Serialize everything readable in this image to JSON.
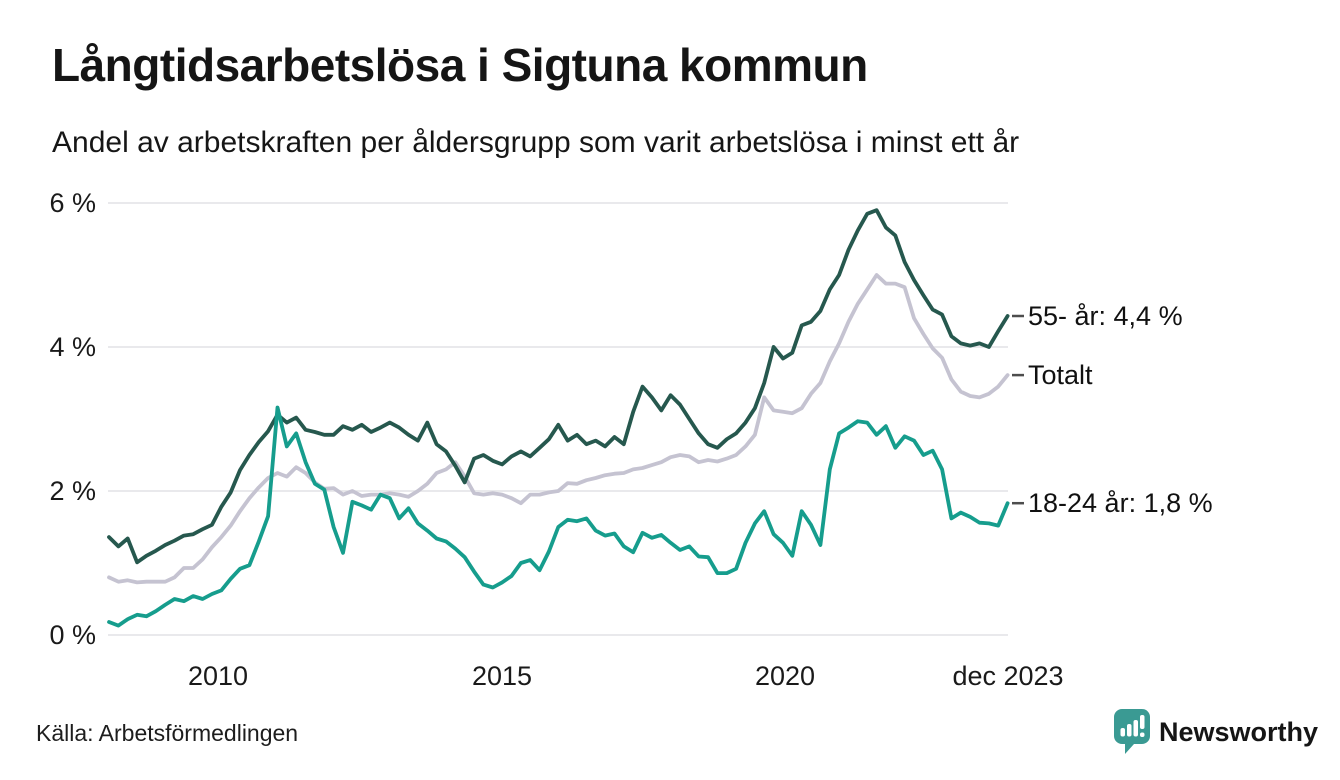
{
  "header": {
    "title": "Långtidsarbetslösa i Sigtuna kommun",
    "subtitle": "Andel av arbetskraften per åldersgrupp som varit arbetslösa i minst ett år"
  },
  "chart_data": {
    "type": "line",
    "title": "Långtidsarbetslösa i Sigtuna kommun",
    "subtitle": "Andel av arbetskraften per åldersgrupp som varit arbetslösa i minst ett år",
    "unit": "% av arbetskraften",
    "x_start": "jan 2008",
    "x_end": "dec 2023",
    "x_interval_months": 2,
    "ylim": [
      0,
      6
    ],
    "grid": true,
    "legend_position": "right-end-labels",
    "y_grid_values": [
      0,
      2,
      4,
      6
    ],
    "y_tick_labels": [
      "0 %",
      "2 %",
      "4 %",
      "6 %"
    ],
    "x_tick_labels": [
      "2010",
      "2015",
      "2020",
      "dec 2023"
    ],
    "x_tick_years": [
      2010,
      2015,
      2020,
      2023.92
    ],
    "series": [
      {
        "name": "Totalt",
        "end_label": "Totalt",
        "end_value": 3.6,
        "color": "#c5c3d1",
        "values": [
          0.8,
          0.74,
          0.76,
          0.73,
          0.74,
          0.74,
          0.74,
          0.8,
          0.93,
          0.93,
          1.05,
          1.22,
          1.36,
          1.52,
          1.72,
          1.9,
          2.05,
          2.18,
          2.25,
          2.2,
          2.33,
          2.25,
          2.12,
          2.03,
          2.04,
          1.95,
          2.0,
          1.93,
          1.95,
          1.95,
          1.97,
          1.95,
          1.92,
          2.0,
          2.1,
          2.25,
          2.3,
          2.4,
          2.2,
          1.97,
          1.95,
          1.97,
          1.95,
          1.9,
          1.83,
          1.95,
          1.95,
          1.98,
          2.0,
          2.11,
          2.1,
          2.15,
          2.18,
          2.22,
          2.24,
          2.25,
          2.3,
          2.32,
          2.36,
          2.4,
          2.47,
          2.5,
          2.48,
          2.4,
          2.43,
          2.41,
          2.45,
          2.5,
          2.62,
          2.78,
          3.3,
          3.12,
          3.1,
          3.08,
          3.15,
          3.35,
          3.5,
          3.8,
          4.05,
          4.35,
          4.6,
          4.8,
          5.0,
          4.88,
          4.88,
          4.83,
          4.4,
          4.18,
          3.98,
          3.85,
          3.55,
          3.38,
          3.32,
          3.3,
          3.35,
          3.45,
          3.61
        ]
      },
      {
        "name": "55- år",
        "end_label": "55- år: 4,4 %",
        "end_value": 4.4,
        "color": "#26584e",
        "values": [
          1.36,
          1.23,
          1.34,
          1.01,
          1.1,
          1.17,
          1.25,
          1.31,
          1.38,
          1.4,
          1.47,
          1.53,
          1.78,
          1.98,
          2.29,
          2.5,
          2.68,
          2.83,
          3.06,
          2.95,
          3.02,
          2.85,
          2.82,
          2.78,
          2.78,
          2.9,
          2.85,
          2.92,
          2.82,
          2.88,
          2.95,
          2.88,
          2.78,
          2.7,
          2.95,
          2.65,
          2.55,
          2.35,
          2.12,
          2.45,
          2.5,
          2.42,
          2.37,
          2.48,
          2.55,
          2.48,
          2.6,
          2.72,
          2.92,
          2.7,
          2.78,
          2.65,
          2.7,
          2.62,
          2.75,
          2.65,
          3.1,
          3.45,
          3.3,
          3.12,
          3.33,
          3.2,
          3.0,
          2.8,
          2.65,
          2.6,
          2.72,
          2.8,
          2.95,
          3.15,
          3.5,
          4.0,
          3.84,
          3.92,
          4.3,
          4.35,
          4.5,
          4.8,
          5.0,
          5.35,
          5.62,
          5.85,
          5.9,
          5.66,
          5.55,
          5.18,
          4.93,
          4.72,
          4.52,
          4.45,
          4.15,
          4.05,
          4.02,
          4.05,
          4.0,
          4.22,
          4.43
        ]
      },
      {
        "name": "18-24 år",
        "end_label": "18-24 år: 1,8 %",
        "end_value": 1.8,
        "color": "#169d8d",
        "values": [
          0.18,
          0.13,
          0.22,
          0.28,
          0.26,
          0.33,
          0.42,
          0.5,
          0.47,
          0.54,
          0.5,
          0.57,
          0.62,
          0.78,
          0.92,
          0.97,
          1.3,
          1.65,
          3.16,
          2.62,
          2.8,
          2.4,
          2.1,
          2.02,
          1.5,
          1.14,
          1.85,
          1.8,
          1.74,
          1.95,
          1.9,
          1.62,
          1.76,
          1.55,
          1.45,
          1.34,
          1.3,
          1.2,
          1.08,
          0.88,
          0.7,
          0.66,
          0.73,
          0.82,
          1.0,
          1.04,
          0.9,
          1.16,
          1.5,
          1.6,
          1.58,
          1.62,
          1.45,
          1.38,
          1.41,
          1.23,
          1.15,
          1.42,
          1.35,
          1.39,
          1.28,
          1.18,
          1.23,
          1.09,
          1.08,
          0.86,
          0.86,
          0.92,
          1.28,
          1.55,
          1.72,
          1.4,
          1.28,
          1.1,
          1.72,
          1.53,
          1.25,
          2.3,
          2.8,
          2.88,
          2.97,
          2.95,
          2.78,
          2.9,
          2.6,
          2.76,
          2.7,
          2.5,
          2.56,
          2.3,
          1.62,
          1.7,
          1.64,
          1.56,
          1.55,
          1.52,
          1.83
        ]
      }
    ]
  },
  "footer": {
    "source": "Källa: Arbetsförmedlingen",
    "brand": "Newsworthy",
    "brand_color": "#39948e"
  }
}
